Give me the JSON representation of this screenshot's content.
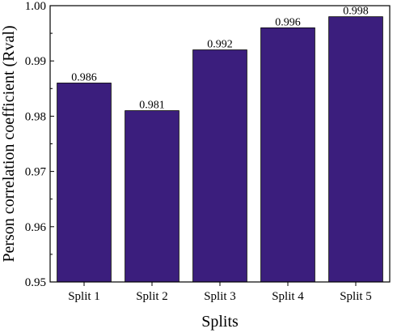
{
  "chart_data": {
    "type": "bar",
    "categories": [
      "Split 1",
      "Split 2",
      "Split 3",
      "Split 4",
      "Split 5"
    ],
    "values": [
      0.986,
      0.981,
      0.992,
      0.996,
      0.998
    ],
    "data_labels": [
      "0.986",
      "0.981",
      "0.992",
      "0.996",
      "0.998"
    ],
    "xlabel": "Splits",
    "ylabel": "Person correlation coefficient (Rval)",
    "ylim": [
      0.95,
      1.0
    ],
    "yticks": [
      "0.95",
      "0.96",
      "0.97",
      "0.98",
      "0.99",
      "1.00"
    ],
    "bar_color": "#3b1e7d",
    "grid": false,
    "legend": "none"
  }
}
